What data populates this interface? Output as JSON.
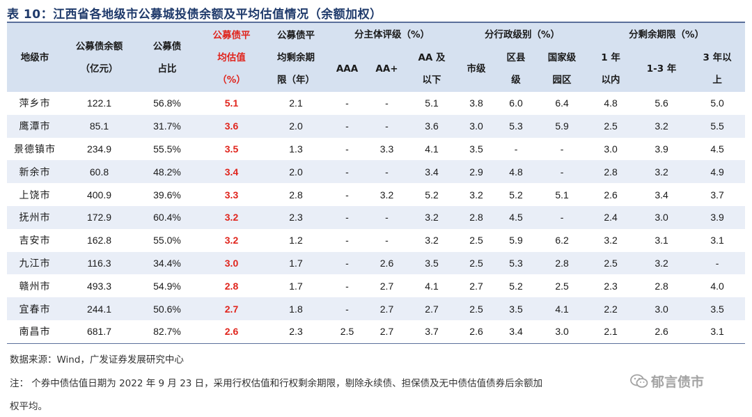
{
  "title": "表 10：江西省各地级市公募城投债余额及平均估值情况（余额加权）",
  "header": {
    "city": "地级市",
    "balance": [
      "公募债余额",
      "（亿元）"
    ],
    "share": [
      "公募债",
      "占比"
    ],
    "avg_val": [
      "公募债平",
      "均估值",
      "（%）"
    ],
    "avg_term": [
      "公募债平",
      "均剩余期",
      "限（年）"
    ],
    "rating_group": "分主体评级（%）",
    "admin_group": "分行政级别（%）",
    "term_group": "分剩余期限（%）",
    "rating_cols": [
      "AAA",
      "AA+",
      [
        "AA 及",
        "以下"
      ]
    ],
    "admin_cols": [
      "市级",
      [
        "区县",
        "级"
      ],
      [
        "国家级",
        "园区"
      ]
    ],
    "term_cols": [
      [
        "1 年",
        "以内"
      ],
      "1-3 年",
      [
        "3 年以",
        "上"
      ]
    ]
  },
  "rows": [
    {
      "city": "萍乡市",
      "balance": "122.1",
      "share": "56.8%",
      "val": "5.1",
      "term": "2.1",
      "aaa": "-",
      "aap": "-",
      "aa": "5.1",
      "muni": "3.8",
      "county": "6.0",
      "park": "6.4",
      "t1": "4.8",
      "t13": "5.6",
      "t3": "5.0"
    },
    {
      "city": "鹰潭市",
      "balance": "85.1",
      "share": "31.7%",
      "val": "3.6",
      "term": "2.0",
      "aaa": "-",
      "aap": "-",
      "aa": "3.6",
      "muni": "3.0",
      "county": "5.3",
      "park": "5.9",
      "t1": "2.5",
      "t13": "3.2",
      "t3": "5.5"
    },
    {
      "city": "景德镇市",
      "balance": "234.9",
      "share": "55.5%",
      "val": "3.5",
      "term": "1.3",
      "aaa": "-",
      "aap": "3.3",
      "aa": "4.1",
      "muni": "3.5",
      "county": "-",
      "park": "-",
      "t1": "3.0",
      "t13": "3.9",
      "t3": "4.5"
    },
    {
      "city": "新余市",
      "balance": "60.8",
      "share": "48.2%",
      "val": "3.4",
      "term": "2.0",
      "aaa": "-",
      "aap": "-",
      "aa": "3.4",
      "muni": "2.9",
      "county": "4.8",
      "park": "-",
      "t1": "2.8",
      "t13": "3.2",
      "t3": "4.9"
    },
    {
      "city": "上饶市",
      "balance": "400.9",
      "share": "39.6%",
      "val": "3.3",
      "term": "2.8",
      "aaa": "-",
      "aap": "3.2",
      "aa": "5.2",
      "muni": "3.2",
      "county": "5.2",
      "park": "5.1",
      "t1": "2.6",
      "t13": "3.4",
      "t3": "3.7"
    },
    {
      "city": "抚州市",
      "balance": "172.9",
      "share": "60.4%",
      "val": "3.2",
      "term": "2.3",
      "aaa": "-",
      "aap": "-",
      "aa": "3.2",
      "muni": "2.8",
      "county": "4.5",
      "park": "-",
      "t1": "2.4",
      "t13": "3.0",
      "t3": "3.9"
    },
    {
      "city": "吉安市",
      "balance": "162.8",
      "share": "55.0%",
      "val": "3.2",
      "term": "1.2",
      "aaa": "-",
      "aap": "-",
      "aa": "3.2",
      "muni": "2.5",
      "county": "5.9",
      "park": "6.2",
      "t1": "3.2",
      "t13": "3.1",
      "t3": "3.1"
    },
    {
      "city": "九江市",
      "balance": "116.3",
      "share": "34.4%",
      "val": "3.0",
      "term": "1.7",
      "aaa": "-",
      "aap": "2.6",
      "aa": "3.5",
      "muni": "2.5",
      "county": "5.3",
      "park": "2.8",
      "t1": "2.5",
      "t13": "3.2",
      "t3": "-"
    },
    {
      "city": "赣州市",
      "balance": "493.3",
      "share": "54.9%",
      "val": "2.8",
      "term": "1.7",
      "aaa": "-",
      "aap": "2.7",
      "aa": "4.1",
      "muni": "2.7",
      "county": "5.2",
      "park": "2.5",
      "t1": "2.3",
      "t13": "2.8",
      "t3": "4.0"
    },
    {
      "city": "宜春市",
      "balance": "244.1",
      "share": "50.6%",
      "val": "2.7",
      "term": "1.8",
      "aaa": "-",
      "aap": "2.7",
      "aa": "2.7",
      "muni": "2.5",
      "county": "3.5",
      "park": "4.1",
      "t1": "2.2",
      "t13": "3.0",
      "t3": "3.5"
    },
    {
      "city": "南昌市",
      "balance": "681.7",
      "share": "82.7%",
      "val": "2.6",
      "term": "2.3",
      "aaa": "2.5",
      "aap": "2.7",
      "aa": "3.7",
      "muni": "2.6",
      "county": "3.4",
      "park": "3.0",
      "t1": "2.1",
      "t13": "2.6",
      "t3": "3.1"
    }
  ],
  "source": "数据来源：Wind，广发证券发展研究中心",
  "note_line1": "注：  个券中债估值日期为 2022 年 9 月 23 日，采用行权估值和行权剩余期限，剔除永续债、担保债及无中债估值债券后余额加",
  "note_line2": "权平均。",
  "watermark": "郁言债市",
  "colors": {
    "accent_red": "#e0241c",
    "header_bg": "#d6e1f0",
    "stripe_bg": "#e9eef7",
    "title_color": "#1f3a6b"
  }
}
